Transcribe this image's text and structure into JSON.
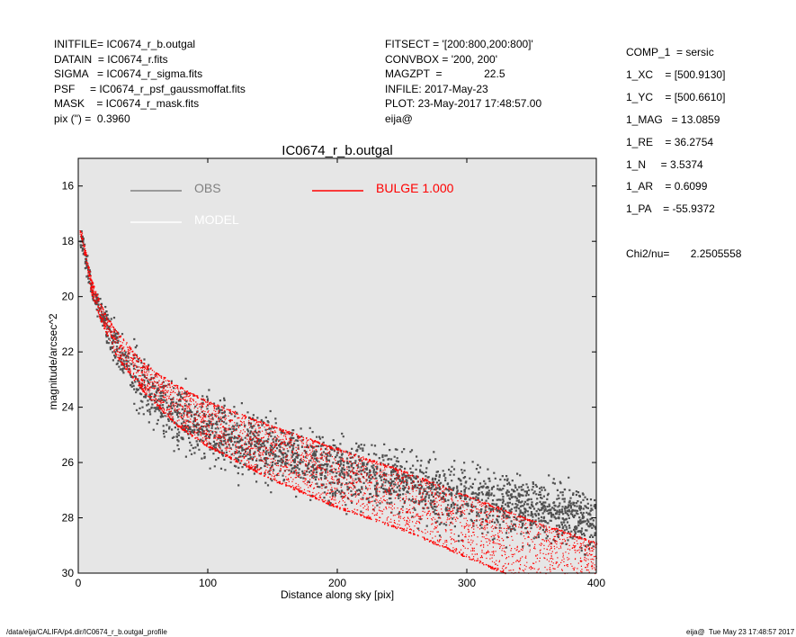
{
  "header": {
    "left": [
      "INITFILE= IC0674_r_b.outgal",
      "DATAIN  = IC0674_r.fits",
      "SIGMA   = IC0674_r_sigma.fits",
      "PSF     = IC0674_r_psf_gaussmoffat.fits",
      "MASK    = IC0674_r_mask.fits",
      "pix (\") =  0.3960"
    ],
    "middle": [
      "FITSECT = '[200:800,200:800]'",
      "CONVBOX = '200, 200'",
      "MAGZPT  =              22.5",
      "INFILE: 2017-May-23",
      "PLOT: 23-May-2017 17:48:57.00",
      "eija@"
    ]
  },
  "params": [
    "COMP_1  = sersic",
    "1_XC    = [500.9130]",
    "1_YC    = [500.6610]",
    "1_MAG   = 13.0859",
    "1_RE    = 36.2754",
    "1_N     = 3.5374",
    "1_AR    = 0.6099",
    "1_PA    = -55.9372"
  ],
  "chi2": "Chi2/nu=       2.2505558",
  "footer": {
    "path": "/data/eija/CALIFA/p4.dir/IC0674_r_b.outgal_profile",
    "stamp": "eija@  Tue May 23 17:48:57 2017"
  },
  "chart_data": {
    "type": "scatter",
    "title": "IC0674_r_b.outgal",
    "xlabel": "Distance along sky [pix]",
    "ylabel": "magnitude/arcsec^2",
    "xlim": [
      0,
      400
    ],
    "ylim": [
      30,
      15
    ],
    "y_inverted": true,
    "xticks": [
      0,
      100,
      200,
      300,
      400
    ],
    "yticks": [
      16,
      18,
      20,
      22,
      24,
      26,
      28,
      30
    ],
    "background": "#e6e6e6",
    "legend": [
      {
        "label": "OBS",
        "color": "#808080",
        "line_color": "#808080"
      },
      {
        "label": "MODEL",
        "color": "#ffffff",
        "line_color": "#ffffff"
      },
      {
        "label": "BULGE  1.000",
        "color": "#ff0000",
        "line_color": "#ff0000"
      }
    ],
    "series": [
      {
        "name": "OBS",
        "color": "#505050",
        "trend": {
          "x": [
            2,
            10,
            20,
            30,
            50,
            75,
            100,
            150,
            200,
            250,
            300,
            350,
            400
          ],
          "y": [
            18.0,
            19.7,
            20.9,
            21.9,
            23.3,
            24.2,
            24.8,
            25.6,
            26.2,
            26.7,
            27.3,
            27.7,
            28.1
          ]
        },
        "scatter_mag": 1.1
      },
      {
        "name": "BULGE  1.000",
        "color": "#ff0000",
        "upper_edge": {
          "x": [
            2,
            10,
            20,
            30,
            50,
            75,
            100,
            150,
            200,
            250,
            300,
            350,
            400
          ],
          "y": [
            17.6,
            19.4,
            20.6,
            21.3,
            22.4,
            23.2,
            23.8,
            24.7,
            25.5,
            26.3,
            27.2,
            28.1,
            28.9
          ]
        },
        "lower_edge": {
          "x": [
            2,
            10,
            20,
            30,
            50,
            75,
            100,
            150,
            200,
            250,
            300,
            325,
            330
          ],
          "y": [
            17.8,
            19.9,
            21.2,
            22.2,
            23.4,
            24.6,
            25.4,
            26.6,
            27.6,
            28.4,
            29.4,
            29.9,
            30.0
          ]
        }
      }
    ]
  }
}
